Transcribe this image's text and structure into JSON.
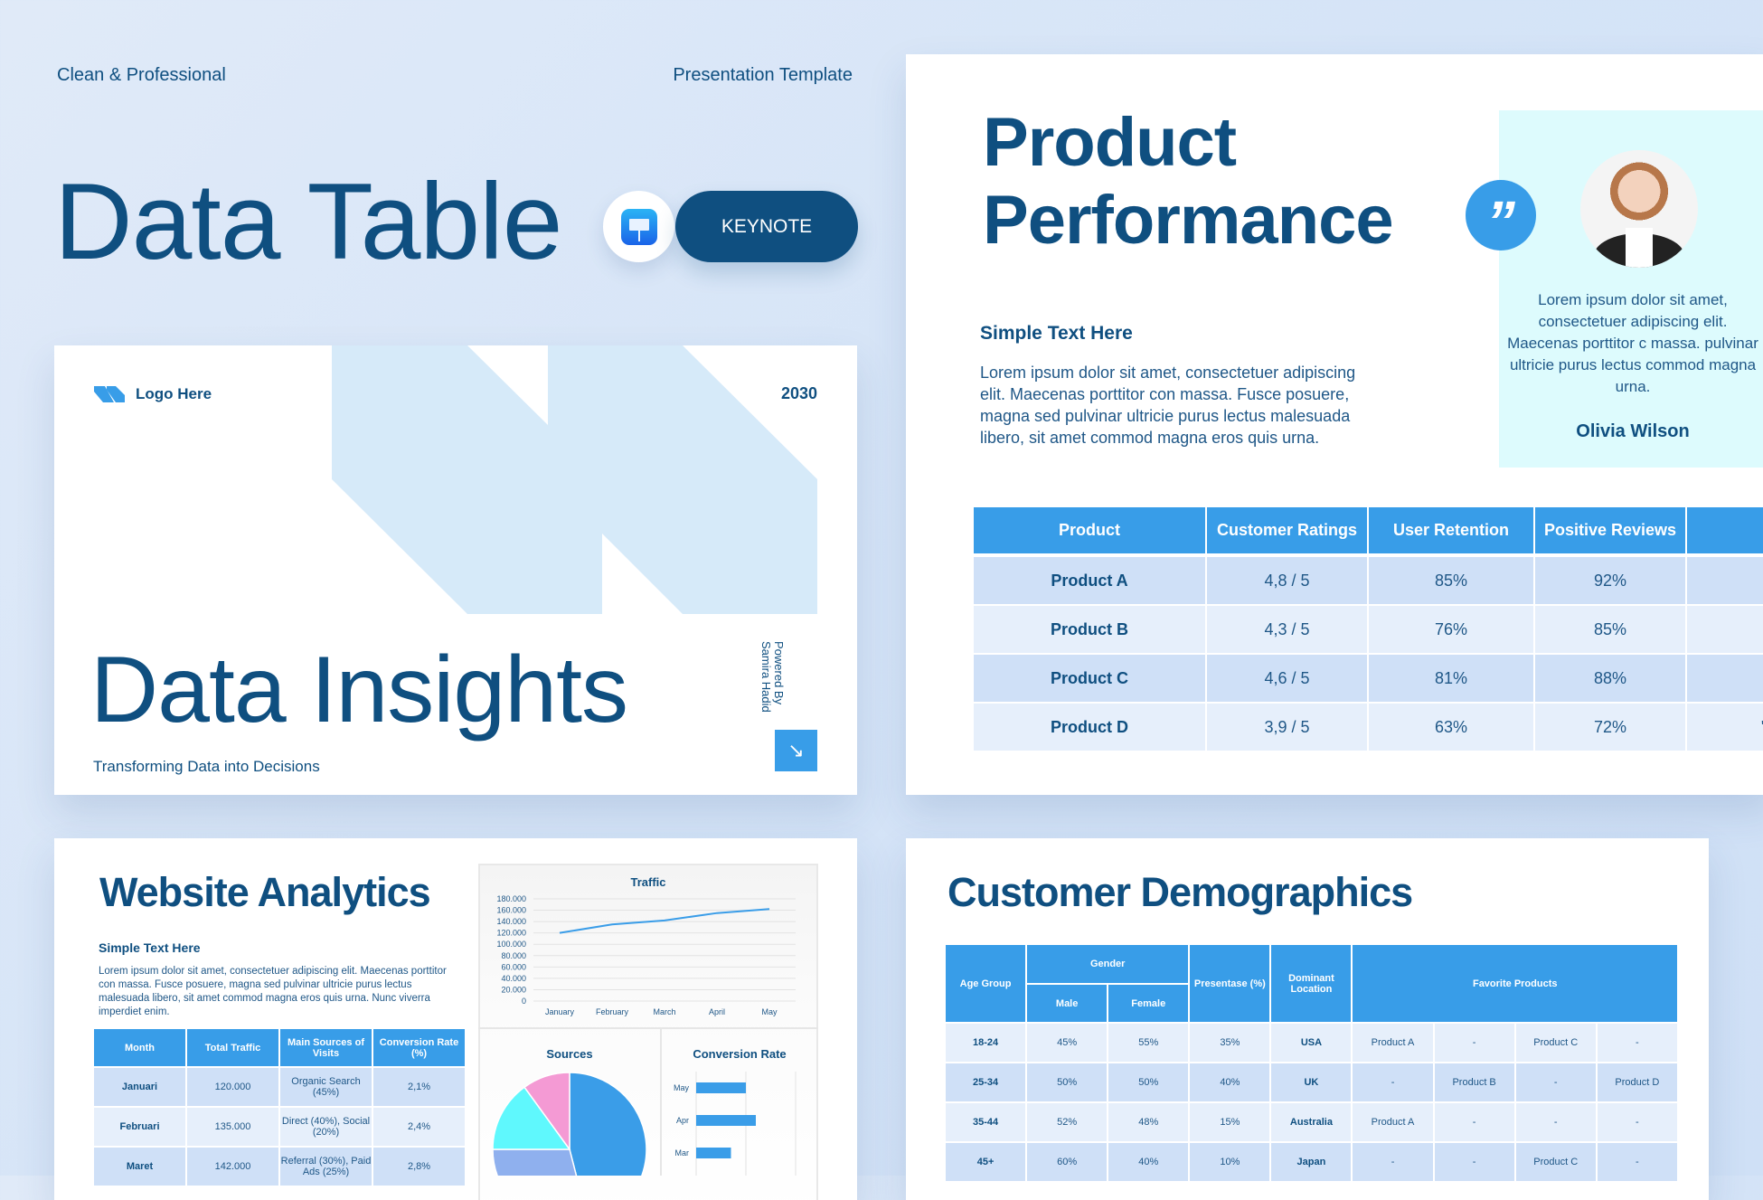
{
  "header": {
    "left_tag": "Clean & Professional",
    "right_tag": "Presentation Template",
    "title": "Data Table",
    "keynote_label": "KEYNOTE",
    "keynote_icon": "keynote-app-icon"
  },
  "cover": {
    "logo_text": "Logo Here",
    "year": "2030",
    "title": "Data Insights",
    "subtitle": "Transforming Data into Decisions",
    "powered_by": "Powered By",
    "author": "Samira Hadid",
    "arrow_icon": "arrow-down-right-icon"
  },
  "product": {
    "title_line1": "Product",
    "title_line2": "Performance",
    "subheading": "Simple Text Here",
    "paragraph": "Lorem ipsum dolor sit amet, consectetuer adipiscing elit. Maecenas porttitor con massa. Fusce posuere, magna sed pulvinar ultricie purus lectus malesuada libero, sit amet commod magna eros quis urna.",
    "quote": {
      "text": "Lorem ipsum dolor sit amet, consectetuer adipiscing elit. Maecenas porttitor c massa. pulvinar ultricie purus lectus commod magna urna.",
      "name": "Olivia Wilson",
      "quote_mark": "”"
    },
    "table": {
      "headers": [
        "Product",
        "Customer Ratings",
        "User Retention",
        "Positive Reviews",
        ""
      ],
      "rows": [
        [
          "Product A",
          "4,8 / 5",
          "85%",
          "92%",
          ""
        ],
        [
          "Product B",
          "4,3 / 5",
          "76%",
          "85%",
          ""
        ],
        [
          "Product C",
          "4,6 / 5",
          "81%",
          "88%",
          ""
        ],
        [
          "Product D",
          "3,9 / 5",
          "63%",
          "72%",
          "\""
        ]
      ]
    }
  },
  "analytics": {
    "title": "Website Analytics",
    "subheading": "Simple Text Here",
    "paragraph": "Lorem ipsum dolor sit amet, consectetuer adipiscing elit. Maecenas porttitor con massa. Fusce posuere, magna sed pulvinar ultricie purus lectus malesuada libero, sit amet commod magna eros quis urna. Nunc viverra imperdiet enim.",
    "table": {
      "headers": [
        "Month",
        "Total Traffic",
        "Main Sources of Visits",
        "Conversion Rate (%)"
      ],
      "rows": [
        [
          "Januari",
          "120.000",
          "Organic Search (45%)",
          "2,1%"
        ],
        [
          "Februari",
          "135.000",
          "Direct (40%), Social (20%)",
          "2,4%"
        ],
        [
          "Maret",
          "142.000",
          "Referral (30%), Paid Ads (25%)",
          "2,8%"
        ]
      ]
    }
  },
  "chart_data": [
    {
      "type": "line",
      "title": "Traffic",
      "categories": [
        "January",
        "February",
        "March",
        "April",
        "May"
      ],
      "values": [
        120000,
        135000,
        142000,
        155000,
        162000
      ],
      "ylim": [
        0,
        180000
      ],
      "yticks": [
        "0",
        "20.000",
        "40.000",
        "60.000",
        "80.000",
        "100.000",
        "120.000",
        "140.000",
        "160.000",
        "180.000"
      ],
      "grid": true,
      "color": "#3a9de8"
    },
    {
      "type": "pie",
      "title": "Sources",
      "values": [
        46,
        29,
        15,
        10
      ],
      "colors": [
        "#3a9de8",
        "#8fb0ee",
        "#5ff8fd",
        "#f49ad4"
      ]
    },
    {
      "type": "bar",
      "title": "Conversion Rate",
      "orientation": "horizontal",
      "categories": [
        "May",
        "Apr",
        "Mar"
      ],
      "values": [
        4.0,
        4.8,
        2.8
      ],
      "xlim": [
        0,
        8
      ],
      "grid": true,
      "color": "#3a9de8"
    }
  ],
  "demographics": {
    "title": "Customer Demographics",
    "headers": {
      "age": "Age Group",
      "gender": "Gender",
      "male": "Male",
      "female": "Female",
      "percent": "Presentase (%)",
      "location": "Dominant Location",
      "favorites": "Favorite Products"
    },
    "rows": [
      [
        "18-24",
        "45%",
        "55%",
        "35%",
        "USA",
        "Product A",
        "-",
        "Product C",
        "-"
      ],
      [
        "25-34",
        "50%",
        "50%",
        "40%",
        "UK",
        "-",
        "Product B",
        "-",
        "Product D"
      ],
      [
        "35-44",
        "52%",
        "48%",
        "15%",
        "Australia",
        "Product A",
        "-",
        "-",
        "-"
      ],
      [
        "45+",
        "60%",
        "40%",
        "10%",
        "Japan",
        "-",
        "-",
        "Product C",
        "-"
      ]
    ]
  },
  "colors": {
    "navy": "#0f4f80",
    "accent": "#389de8",
    "row_dark": "#cfe0f7",
    "row_light": "#e6effb",
    "quote_bg": "#ddfbfd"
  }
}
